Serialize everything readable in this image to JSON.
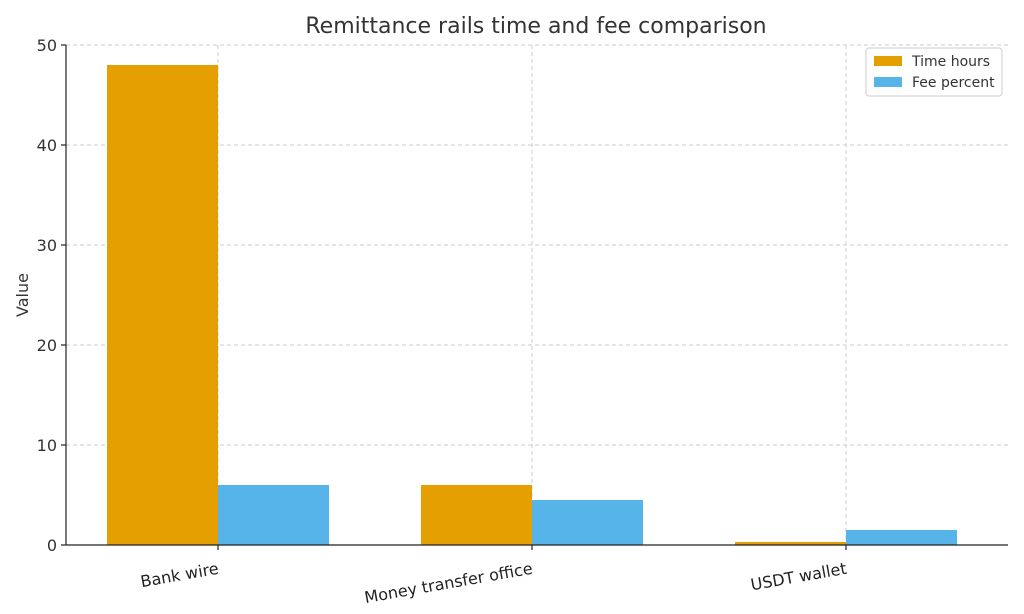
{
  "chart_data": {
    "type": "bar",
    "title": "Remittance rails  time and fee comparison",
    "xlabel": "",
    "ylabel": "Value",
    "ylim": [
      0,
      50
    ],
    "yticks": [
      0,
      10,
      20,
      30,
      40,
      50
    ],
    "categories": [
      "Bank wire",
      "Money transfer office",
      "USDT wallet"
    ],
    "series": [
      {
        "name": "Time hours",
        "color": "#E69F00",
        "values": [
          48,
          6,
          0.3
        ]
      },
      {
        "name": "Fee percent",
        "color": "#56B4E9",
        "values": [
          6,
          4.5,
          1.5
        ]
      }
    ],
    "grid": true,
    "legend": "top-right"
  }
}
